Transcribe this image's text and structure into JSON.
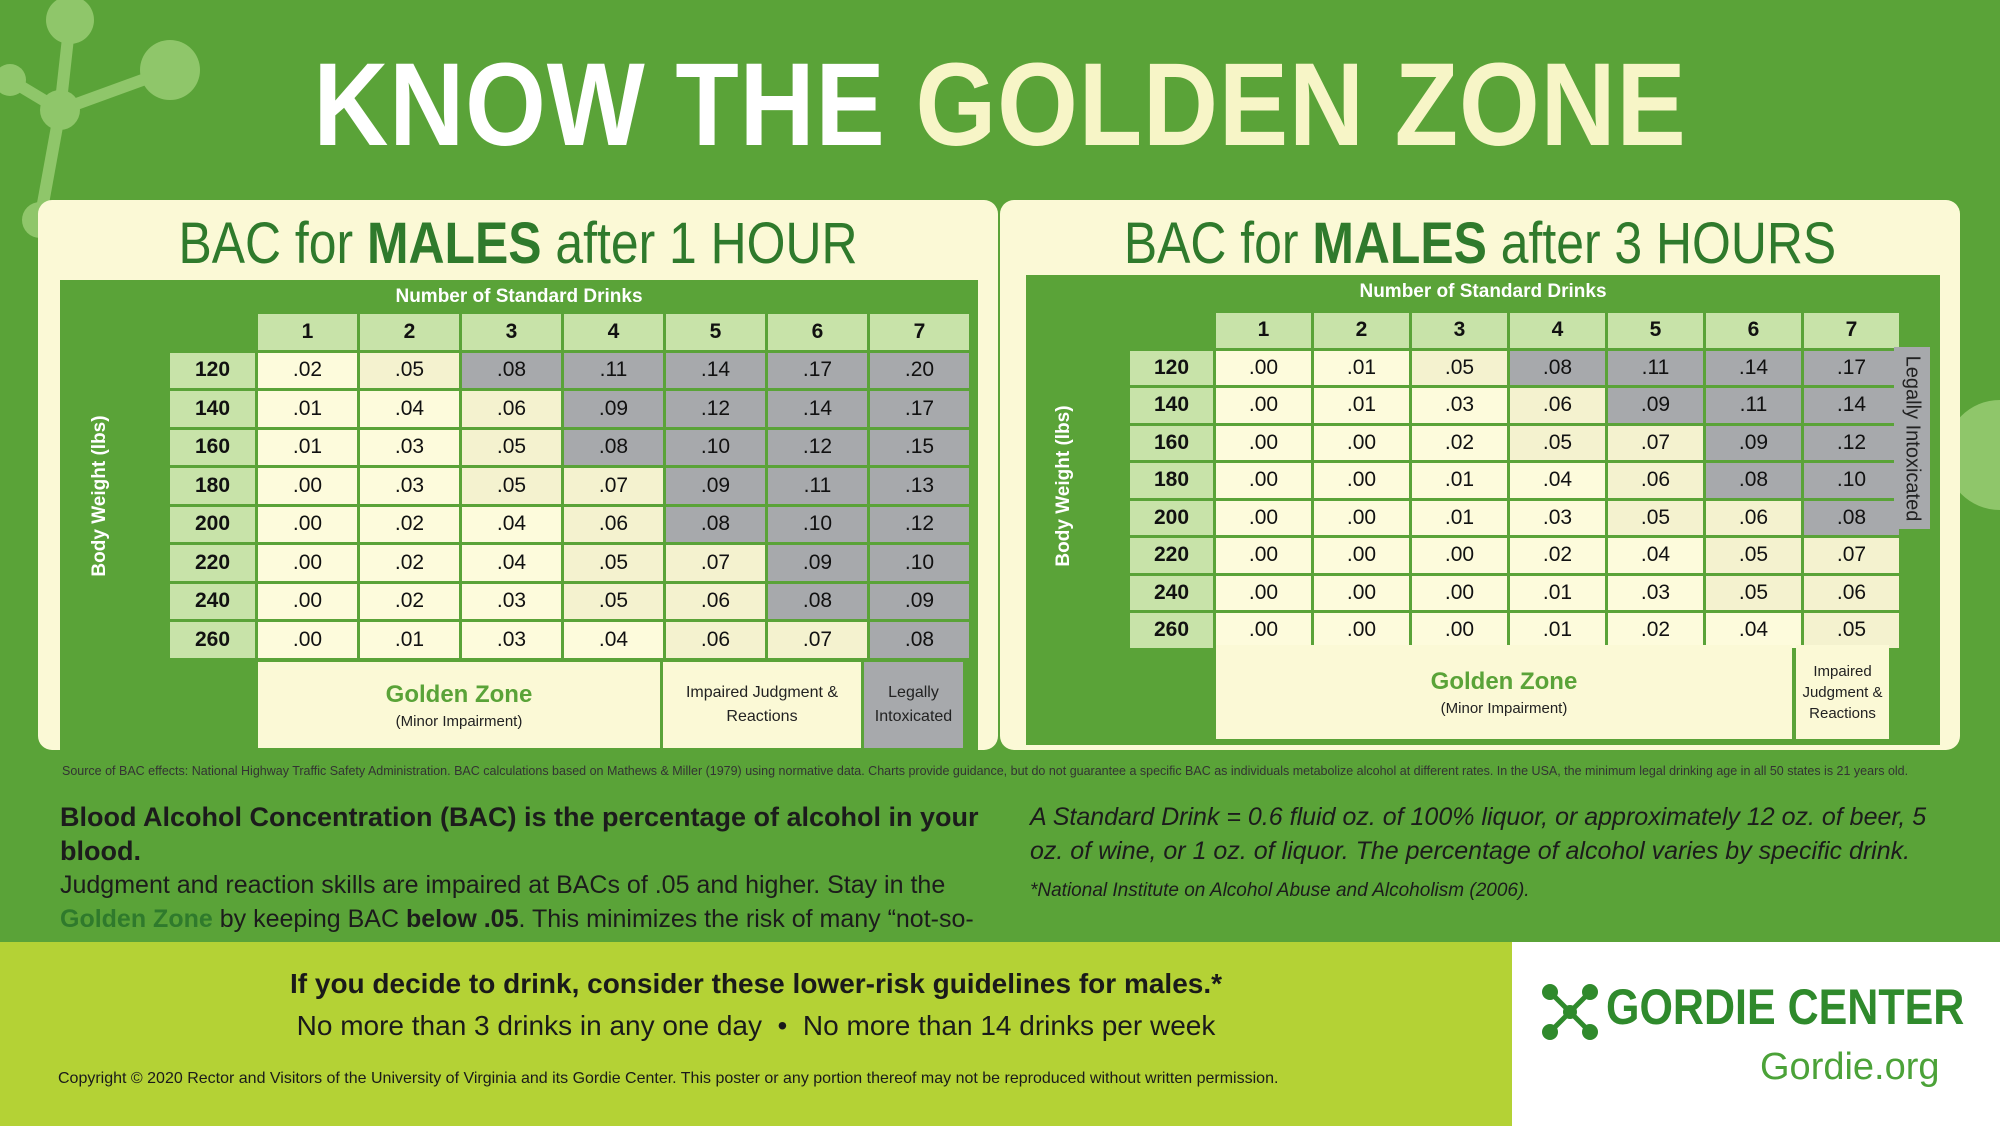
{
  "title": {
    "part1": "KNOW THE ",
    "part2": "GOLDEN ZONE"
  },
  "colors": {
    "green": "#5aa338",
    "dark_green": "#2f7a2c",
    "cream": "#fbf9d6",
    "gray": "#a7a9ac",
    "lime": "#b4d235"
  },
  "chart_data": [
    {
      "type": "table",
      "title_pre": "BAC for ",
      "title_bold": "MALES",
      "title_post": " after 1 HOUR",
      "col_caption": "Number of Standard Drinks",
      "row_caption": "Body Weight (lbs)",
      "drinks": [
        "1",
        "2",
        "3",
        "4",
        "5",
        "6",
        "7"
      ],
      "weights": [
        "120",
        "140",
        "160",
        "180",
        "200",
        "220",
        "240",
        "260"
      ],
      "values": [
        [
          ".02",
          ".05",
          ".08",
          ".11",
          ".14",
          ".17",
          ".20"
        ],
        [
          ".01",
          ".04",
          ".06",
          ".09",
          ".12",
          ".14",
          ".17"
        ],
        [
          ".01",
          ".03",
          ".05",
          ".08",
          ".10",
          ".12",
          ".15"
        ],
        [
          ".00",
          ".03",
          ".05",
          ".07",
          ".09",
          ".11",
          ".13"
        ],
        [
          ".00",
          ".02",
          ".04",
          ".06",
          ".08",
          ".10",
          ".12"
        ],
        [
          ".00",
          ".02",
          ".04",
          ".05",
          ".07",
          ".09",
          ".10"
        ],
        [
          ".00",
          ".02",
          ".03",
          ".05",
          ".06",
          ".08",
          ".09"
        ],
        [
          ".00",
          ".01",
          ".03",
          ".04",
          ".06",
          ".07",
          ".08"
        ]
      ],
      "zones": [
        [
          "gz",
          "imp",
          "leg",
          "leg",
          "leg",
          "leg",
          "leg"
        ],
        [
          "gz",
          "gz",
          "imp",
          "leg",
          "leg",
          "leg",
          "leg"
        ],
        [
          "gz",
          "gz",
          "imp",
          "leg",
          "leg",
          "leg",
          "leg"
        ],
        [
          "gz",
          "gz",
          "imp",
          "imp",
          "leg",
          "leg",
          "leg"
        ],
        [
          "gz",
          "gz",
          "gz",
          "imp",
          "leg",
          "leg",
          "leg"
        ],
        [
          "gz",
          "gz",
          "gz",
          "imp",
          "imp",
          "leg",
          "leg"
        ],
        [
          "gz",
          "gz",
          "gz",
          "imp",
          "imp",
          "leg",
          "leg"
        ],
        [
          "gz",
          "gz",
          "gz",
          "gz",
          "imp",
          "imp",
          "leg"
        ]
      ],
      "legend": {
        "golden_zone": "Golden Zone",
        "golden_sub": "(Minor Impairment)",
        "impaired": "Impaired Judgment & Reactions",
        "legal": "Legally Intoxicated"
      }
    },
    {
      "type": "table",
      "title_pre": "BAC for ",
      "title_bold": "MALES",
      "title_post": " after 3 HOURS",
      "col_caption": "Number of Standard Drinks",
      "row_caption": "Body Weight (lbs)",
      "drinks": [
        "1",
        "2",
        "3",
        "4",
        "5",
        "6",
        "7"
      ],
      "weights": [
        "120",
        "140",
        "160",
        "180",
        "200",
        "220",
        "240",
        "260"
      ],
      "values": [
        [
          ".00",
          ".01",
          ".05",
          ".08",
          ".11",
          ".14",
          ".17"
        ],
        [
          ".00",
          ".01",
          ".03",
          ".06",
          ".09",
          ".11",
          ".14"
        ],
        [
          ".00",
          ".00",
          ".02",
          ".05",
          ".07",
          ".09",
          ".12"
        ],
        [
          ".00",
          ".00",
          ".01",
          ".04",
          ".06",
          ".08",
          ".10"
        ],
        [
          ".00",
          ".00",
          ".01",
          ".03",
          ".05",
          ".06",
          ".08"
        ],
        [
          ".00",
          ".00",
          ".00",
          ".02",
          ".04",
          ".05",
          ".07"
        ],
        [
          ".00",
          ".00",
          ".00",
          ".01",
          ".03",
          ".05",
          ".06"
        ],
        [
          ".00",
          ".00",
          ".00",
          ".01",
          ".02",
          ".04",
          ".05"
        ]
      ],
      "zones": [
        [
          "gz",
          "gz",
          "imp",
          "leg",
          "leg",
          "leg",
          "leg"
        ],
        [
          "gz",
          "gz",
          "gz",
          "imp",
          "leg",
          "leg",
          "leg"
        ],
        [
          "gz",
          "gz",
          "gz",
          "imp",
          "imp",
          "leg",
          "leg"
        ],
        [
          "gz",
          "gz",
          "gz",
          "gz",
          "imp",
          "leg",
          "leg"
        ],
        [
          "gz",
          "gz",
          "gz",
          "gz",
          "imp",
          "imp",
          "leg"
        ],
        [
          "gz",
          "gz",
          "gz",
          "gz",
          "gz",
          "imp",
          "imp"
        ],
        [
          "gz",
          "gz",
          "gz",
          "gz",
          "gz",
          "imp",
          "imp"
        ],
        [
          "gz",
          "gz",
          "gz",
          "gz",
          "gz",
          "gz",
          "imp"
        ]
      ],
      "legend": {
        "golden_zone": "Golden Zone",
        "golden_sub": "(Minor Impairment)",
        "impaired": "Impaired Judgment & Reactions",
        "legal": "Legally Intoxicated"
      }
    }
  ],
  "source_note": "Source of BAC effects: National Highway Traffic Safety Administration. BAC calculations based on Mathews & Miller (1979) using normative data. Charts provide guidance, but do not guarantee a specific BAC as individuals metabolize alcohol at different rates. In the USA, the minimum legal drinking age in all 50 states is 21 years old.",
  "bac_info": {
    "lead": "Blood Alcohol Concentration (BAC) is the percentage of alcohol in your blood.",
    "line1": "Judgment and reaction skills are impaired at BACs of .05 and higher. Stay in the ",
    "gz": "Golden Zone",
    "line2a": " by keeping BAC ",
    "below": "below .05",
    "line2b": ". This minimizes the risk of many “not-so-good” effects of drinking."
  },
  "standard_drink": {
    "text": "A Standard Drink = 0.6 fluid oz. of 100% liquor, or approximately 12 oz. of beer, 5 oz. of wine, or 1 oz. of liquor. The percentage of alcohol varies by specific drink.",
    "footnote": "*National Institute on Alcohol Abuse and Alcoholism (2006)."
  },
  "guidelines": {
    "heading": "If you decide to drink, consider these lower-risk guidelines for males.*",
    "items": "No more than 3 drinks in any one day  •  No more than 14 drinks per week"
  },
  "copyright": "Copyright © 2020 Rector and Visitors of the University of Virginia and its Gordie Center.  This poster or any portion thereof may not be reproduced without written permission.",
  "logo": {
    "name": "GORDIE CENTER",
    "url": "Gordie.org",
    "icon": "molecule-icon"
  }
}
